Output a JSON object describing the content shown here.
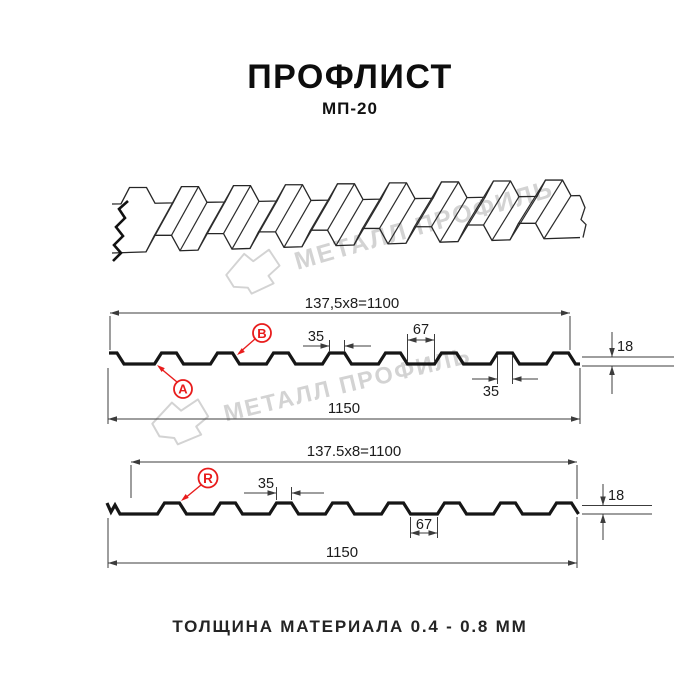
{
  "page": {
    "title": "ПРОФЛИСТ",
    "subtitle": "МП-20",
    "footer_note": "ТОЛЩИНА МАТЕРИАЛА 0.4 - 0.8 ММ"
  },
  "watermark": {
    "brand_text": "МЕТАЛЛ ПРОФИЛЬ"
  },
  "diagrams": {
    "top": {
      "pitch_formula": "137,5x8=1100",
      "total_width": "1150",
      "crest_width_upper": "35",
      "valley_width": "67",
      "crest_width_lower": "35",
      "profile_height": "18",
      "marker_a": "A",
      "marker_b": "B"
    },
    "bottom": {
      "pitch_formula": "137.5x8=1100",
      "total_width": "1150",
      "crest_width": "35",
      "valley_width": "67",
      "profile_height": "18",
      "marker_r": "R"
    }
  },
  "colors": {
    "drawing_line": "#161616",
    "dimension_line": "#3c3c3c",
    "accent_red": "#e81c1c",
    "watermark_gray": "#d3d3d3"
  }
}
